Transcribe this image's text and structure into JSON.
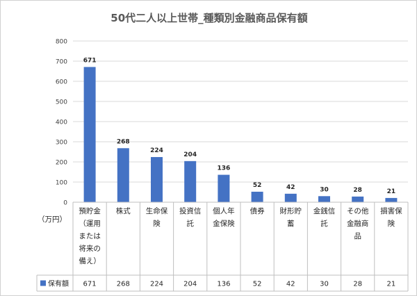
{
  "chart_data": {
    "type": "bar",
    "title": "50代二人以上世帯_種類別金融商品保有額",
    "unit_label": "（万円）",
    "categories": [
      [
        "預貯金",
        "（運用",
        "または",
        "将来の",
        "備え）"
      ],
      [
        "株式"
      ],
      [
        "生命保",
        "険"
      ],
      [
        "投資信",
        "託"
      ],
      [
        "個人年",
        "金保険"
      ],
      [
        "債券"
      ],
      [
        "財形貯",
        "蓄"
      ],
      [
        "金銭信",
        "託"
      ],
      [
        "その他",
        "金融商",
        "品"
      ],
      [
        "損害保",
        "険"
      ]
    ],
    "series": [
      {
        "name": "保有額",
        "values": [
          671,
          268,
          224,
          204,
          136,
          52,
          42,
          30,
          28,
          21
        ]
      }
    ],
    "ylim": [
      0,
      800
    ],
    "yticks": [
      0,
      100,
      200,
      300,
      400,
      500,
      600,
      700,
      800
    ],
    "grid": true,
    "legend": "in-data-table",
    "data_labels": true,
    "colors": {
      "bar": "#4472C4",
      "grid": "#d9d9d9",
      "table_border": "#bfbfbf",
      "text": "#404040"
    }
  }
}
